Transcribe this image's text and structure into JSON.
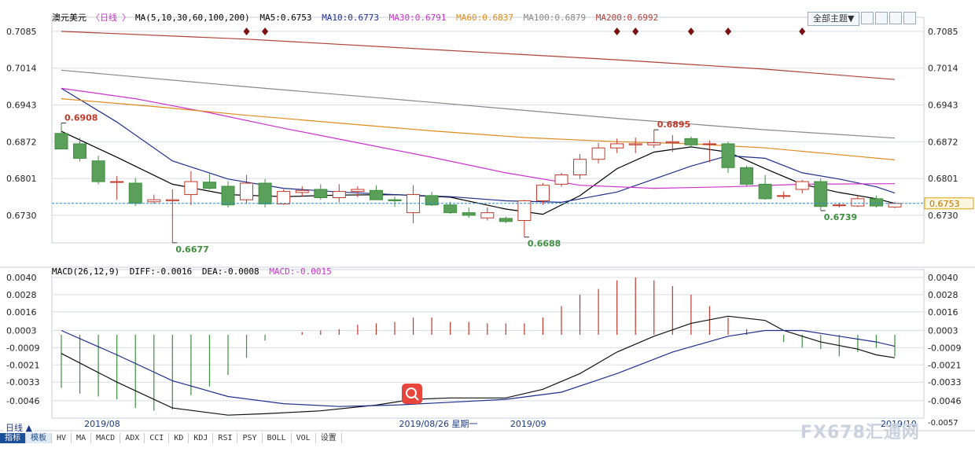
{
  "header": {
    "symbol": "澳元美元",
    "period_tag": "日线",
    "ma_params": "MA(5,10,30,60,100,200)",
    "theme_button": "全部主题▼"
  },
  "ma_legend": [
    {
      "label": "MA5:0.6753",
      "color": "#000000"
    },
    {
      "label": "MA10:0.6773",
      "color": "#1f2f8c"
    },
    {
      "label": "MA30:0.6791",
      "color": "#cc33cc"
    },
    {
      "label": "MA60:0.6837",
      "color": "#e08a1e"
    },
    {
      "label": "MA100:0.6879",
      "color": "#888888"
    },
    {
      "label": "MA200:0.6992",
      "color": "#b0403a"
    }
  ],
  "macd_legend": {
    "params": "MACD(26,12,9)",
    "diff": "DIFF:-0.0016",
    "dea": "DEA:-0.0008",
    "macd": "MACD:-0.0015",
    "macd_color": "#cc33cc"
  },
  "colors": {
    "up": "#c0392b",
    "down": "#3f8f3f",
    "down_fill": "#5aa05a",
    "grid": "#d8dde6",
    "price_line": "#1e8fd6"
  },
  "current_price_label": "0.6753",
  "bottom": {
    "period": "日线 ▲",
    "tabs": [
      "指标",
      "模板",
      "HV",
      "MA",
      "MACD",
      "ADX",
      "CCI",
      "KD",
      "KDJ",
      "RSI",
      "PSY",
      "BOLL",
      "VOL",
      "设置"
    ],
    "date_labels": [
      {
        "text": "2019/08",
        "date_index": 2
      },
      {
        "text": "2019/08/26 星期一",
        "date_index": 19
      },
      {
        "text": "2019/09",
        "date_index": 25
      },
      {
        "text": "2019/10",
        "date_index": 45
      }
    ],
    "macd_bottom_label": "-0.0057"
  },
  "watermark": "FX678汇通网",
  "chart_data": [
    {
      "type": "candlestick",
      "title": "澳元美元 日线",
      "ylim": [
        0.6695,
        0.71
      ],
      "y_ticks": [
        "0.7085",
        "0.7014",
        "0.6943",
        "0.6872",
        "0.6801",
        "0.6730"
      ],
      "grid": true,
      "annotations": [
        {
          "text": "0.6908",
          "index": 0,
          "value": 0.6908,
          "color": "#c0392b"
        },
        {
          "text": "0.6677",
          "index": 6,
          "value": 0.6677,
          "color": "#3f8f3f"
        },
        {
          "text": "0.6688",
          "index": 25,
          "value": 0.6688,
          "color": "#3f8f3f"
        },
        {
          "text": "0.6895",
          "index": 32,
          "value": 0.6895,
          "color": "#c0392b"
        },
        {
          "text": "0.6739",
          "index": 41,
          "value": 0.6739,
          "color": "#3f8f3f"
        }
      ],
      "markers": [
        10,
        11,
        30,
        31,
        34,
        36,
        40
      ],
      "candles": [
        {
          "o": 0.6888,
          "h": 0.6908,
          "l": 0.6858,
          "c": 0.6858
        },
        {
          "o": 0.6868,
          "h": 0.688,
          "l": 0.6834,
          "c": 0.684
        },
        {
          "o": 0.6835,
          "h": 0.6845,
          "l": 0.679,
          "c": 0.6795
        },
        {
          "o": 0.6795,
          "h": 0.6806,
          "l": 0.676,
          "c": 0.6795
        },
        {
          "o": 0.6792,
          "h": 0.6802,
          "l": 0.6748,
          "c": 0.6753
        },
        {
          "o": 0.6756,
          "h": 0.677,
          "l": 0.6752,
          "c": 0.676
        },
        {
          "o": 0.6758,
          "h": 0.678,
          "l": 0.6677,
          "c": 0.676
        },
        {
          "o": 0.677,
          "h": 0.6815,
          "l": 0.675,
          "c": 0.6795
        },
        {
          "o": 0.6794,
          "h": 0.681,
          "l": 0.678,
          "c": 0.6782
        },
        {
          "o": 0.6786,
          "h": 0.6796,
          "l": 0.6745,
          "c": 0.675
        },
        {
          "o": 0.676,
          "h": 0.6808,
          "l": 0.6752,
          "c": 0.6792
        },
        {
          "o": 0.6792,
          "h": 0.68,
          "l": 0.6745,
          "c": 0.6752
        },
        {
          "o": 0.6752,
          "h": 0.678,
          "l": 0.675,
          "c": 0.6776
        },
        {
          "o": 0.6774,
          "h": 0.6786,
          "l": 0.6766,
          "c": 0.6778
        },
        {
          "o": 0.678,
          "h": 0.679,
          "l": 0.676,
          "c": 0.6764
        },
        {
          "o": 0.6764,
          "h": 0.679,
          "l": 0.6755,
          "c": 0.6776
        },
        {
          "o": 0.6776,
          "h": 0.6786,
          "l": 0.6765,
          "c": 0.678
        },
        {
          "o": 0.6778,
          "h": 0.6788,
          "l": 0.676,
          "c": 0.676
        },
        {
          "o": 0.676,
          "h": 0.6766,
          "l": 0.6746,
          "c": 0.6758
        },
        {
          "o": 0.6735,
          "h": 0.6788,
          "l": 0.6715,
          "c": 0.677
        },
        {
          "o": 0.6768,
          "h": 0.6775,
          "l": 0.6748,
          "c": 0.675
        },
        {
          "o": 0.675,
          "h": 0.6756,
          "l": 0.6733,
          "c": 0.6735
        },
        {
          "o": 0.6735,
          "h": 0.6745,
          "l": 0.6725,
          "c": 0.673
        },
        {
          "o": 0.6725,
          "h": 0.6745,
          "l": 0.672,
          "c": 0.6735
        },
        {
          "o": 0.6724,
          "h": 0.6727,
          "l": 0.6715,
          "c": 0.6718
        },
        {
          "o": 0.672,
          "h": 0.676,
          "l": 0.6688,
          "c": 0.6758
        },
        {
          "o": 0.6758,
          "h": 0.6792,
          "l": 0.675,
          "c": 0.6788
        },
        {
          "o": 0.679,
          "h": 0.6812,
          "l": 0.6785,
          "c": 0.6808
        },
        {
          "o": 0.6808,
          "h": 0.6848,
          "l": 0.68,
          "c": 0.6838
        },
        {
          "o": 0.6838,
          "h": 0.687,
          "l": 0.683,
          "c": 0.686
        },
        {
          "o": 0.686,
          "h": 0.6878,
          "l": 0.685,
          "c": 0.6868
        },
        {
          "o": 0.6866,
          "h": 0.688,
          "l": 0.685,
          "c": 0.6868
        },
        {
          "o": 0.6866,
          "h": 0.6895,
          "l": 0.686,
          "c": 0.687
        },
        {
          "o": 0.687,
          "h": 0.6885,
          "l": 0.6852,
          "c": 0.6872
        },
        {
          "o": 0.6878,
          "h": 0.6882,
          "l": 0.6862,
          "c": 0.6866
        },
        {
          "o": 0.6868,
          "h": 0.6874,
          "l": 0.6832,
          "c": 0.6868
        },
        {
          "o": 0.6868,
          "h": 0.6872,
          "l": 0.6812,
          "c": 0.6822
        },
        {
          "o": 0.6822,
          "h": 0.6826,
          "l": 0.6786,
          "c": 0.679
        },
        {
          "o": 0.679,
          "h": 0.6808,
          "l": 0.676,
          "c": 0.6762
        },
        {
          "o": 0.6768,
          "h": 0.6776,
          "l": 0.6762,
          "c": 0.6768
        },
        {
          "o": 0.678,
          "h": 0.6798,
          "l": 0.6772,
          "c": 0.6795
        },
        {
          "o": 0.6795,
          "h": 0.6801,
          "l": 0.6739,
          "c": 0.6747
        },
        {
          "o": 0.675,
          "h": 0.6754,
          "l": 0.6745,
          "c": 0.675
        },
        {
          "o": 0.6748,
          "h": 0.6768,
          "l": 0.6746,
          "c": 0.6762
        },
        {
          "o": 0.6762,
          "h": 0.6768,
          "l": 0.6745,
          "c": 0.6748
        },
        {
          "o": 0.6746,
          "h": 0.6756,
          "l": 0.6744,
          "c": 0.6753
        }
      ],
      "moving_averages": [
        {
          "name": "MA5",
          "color": "#000000",
          "points": [
            [
              0,
              0.6892
            ],
            [
              3,
              0.6842
            ],
            [
              6,
              0.679
            ],
            [
              9,
              0.677
            ],
            [
              12,
              0.6766
            ],
            [
              15,
              0.6769
            ],
            [
              18,
              0.677
            ],
            [
              21,
              0.6765
            ],
            [
              24,
              0.6742
            ],
            [
              26,
              0.6732
            ],
            [
              28,
              0.6768
            ],
            [
              30,
              0.682
            ],
            [
              32,
              0.6852
            ],
            [
              34,
              0.6862
            ],
            [
              36,
              0.6852
            ],
            [
              38,
              0.682
            ],
            [
              40,
              0.679
            ],
            [
              42,
              0.6774
            ],
            [
              44,
              0.6762
            ],
            [
              45,
              0.6753
            ]
          ]
        },
        {
          "name": "MA10",
          "color": "#1f2f8c",
          "points": [
            [
              0,
              0.6975
            ],
            [
              3,
              0.691
            ],
            [
              6,
              0.6835
            ],
            [
              9,
              0.68
            ],
            [
              12,
              0.6782
            ],
            [
              15,
              0.6775
            ],
            [
              18,
              0.677
            ],
            [
              21,
              0.6766
            ],
            [
              24,
              0.6758
            ],
            [
              27,
              0.6755
            ],
            [
              30,
              0.6775
            ],
            [
              32,
              0.68
            ],
            [
              34,
              0.6825
            ],
            [
              36,
              0.6845
            ],
            [
              38,
              0.684
            ],
            [
              40,
              0.6812
            ],
            [
              42,
              0.68
            ],
            [
              44,
              0.6785
            ],
            [
              45,
              0.6773
            ]
          ]
        },
        {
          "name": "MA30",
          "color": "#cc33cc",
          "points": [
            [
              0,
              0.6975
            ],
            [
              4,
              0.6955
            ],
            [
              8,
              0.6928
            ],
            [
              12,
              0.6898
            ],
            [
              16,
              0.687
            ],
            [
              20,
              0.6842
            ],
            [
              24,
              0.6812
            ],
            [
              28,
              0.6788
            ],
            [
              32,
              0.6782
            ],
            [
              36,
              0.6785
            ],
            [
              40,
              0.679
            ],
            [
              45,
              0.6791
            ]
          ]
        },
        {
          "name": "MA60",
          "color": "#e08a1e",
          "points": [
            [
              0,
              0.6955
            ],
            [
              5,
              0.694
            ],
            [
              10,
              0.6923
            ],
            [
              15,
              0.6908
            ],
            [
              20,
              0.6893
            ],
            [
              25,
              0.688
            ],
            [
              30,
              0.6872
            ],
            [
              34,
              0.6868
            ],
            [
              38,
              0.686
            ],
            [
              42,
              0.6847
            ],
            [
              45,
              0.6837
            ]
          ]
        },
        {
          "name": "MA100",
          "color": "#888888",
          "points": [
            [
              0,
              0.701
            ],
            [
              10,
              0.6978
            ],
            [
              20,
              0.6948
            ],
            [
              30,
              0.6917
            ],
            [
              38,
              0.6895
            ],
            [
              45,
              0.6879
            ]
          ]
        },
        {
          "name": "MA200",
          "color": "#b0403a",
          "points": [
            [
              0,
              0.7085
            ],
            [
              10,
              0.707
            ],
            [
              20,
              0.705
            ],
            [
              30,
              0.703
            ],
            [
              38,
              0.7012
            ],
            [
              45,
              0.6992
            ]
          ]
        }
      ]
    },
    {
      "type": "bar",
      "title": "MACD(26,12,9)",
      "ylim": [
        -0.0057,
        0.004
      ],
      "y_ticks": [
        "0.0040",
        "0.0028",
        "0.0016",
        "0.0003",
        "-0.0009",
        "-0.0021",
        "-0.0033",
        "-0.0046"
      ],
      "macd_hist": [
        -0.0037,
        -0.0041,
        -0.0043,
        -0.0045,
        -0.0051,
        -0.0053,
        -0.0052,
        -0.0042,
        -0.0036,
        -0.0028,
        -0.0016,
        -0.0004,
        0.0,
        0.0002,
        0.0003,
        0.0004,
        0.0007,
        0.0008,
        0.0009,
        0.0012,
        0.0012,
        0.0009,
        0.0009,
        0.0008,
        0.0008,
        0.0008,
        0.0012,
        0.002,
        0.0028,
        0.0032,
        0.0038,
        0.004,
        0.0038,
        0.0034,
        0.0028,
        0.002,
        0.0012,
        0.0004,
        0.0,
        -0.0005,
        -0.0009,
        -0.001,
        -0.0015,
        -0.0012,
        -0.0009,
        -0.0015
      ],
      "diff": [
        {
          "x": 0,
          "y": -0.0013
        },
        {
          "x": 3,
          "y": -0.0033
        },
        {
          "x": 6,
          "y": -0.0051
        },
        {
          "x": 9,
          "y": -0.0056
        },
        {
          "x": 11,
          "y": -0.0055
        },
        {
          "x": 14,
          "y": -0.0053
        },
        {
          "x": 17,
          "y": -0.0049
        },
        {
          "x": 19,
          "y": -0.0045
        },
        {
          "x": 21,
          "y": -0.0044
        },
        {
          "x": 24,
          "y": -0.0044
        },
        {
          "x": 26,
          "y": -0.0038
        },
        {
          "x": 28,
          "y": -0.0027
        },
        {
          "x": 30,
          "y": -0.0012
        },
        {
          "x": 32,
          "y": -0.0001
        },
        {
          "x": 34,
          "y": 0.0008
        },
        {
          "x": 36,
          "y": 0.0013
        },
        {
          "x": 38,
          "y": 0.001
        },
        {
          "x": 39,
          "y": 0.0003
        },
        {
          "x": 41,
          "y": -0.0005
        },
        {
          "x": 43,
          "y": -0.001
        },
        {
          "x": 44,
          "y": -0.0014
        },
        {
          "x": 45,
          "y": -0.0016
        }
      ],
      "dea": [
        {
          "x": 0,
          "y": 0.0003
        },
        {
          "x": 3,
          "y": -0.0014
        },
        {
          "x": 6,
          "y": -0.0032
        },
        {
          "x": 9,
          "y": -0.0043
        },
        {
          "x": 12,
          "y": -0.0048
        },
        {
          "x": 15,
          "y": -0.005
        },
        {
          "x": 18,
          "y": -0.0049
        },
        {
          "x": 21,
          "y": -0.0047
        },
        {
          "x": 24,
          "y": -0.0045
        },
        {
          "x": 27,
          "y": -0.004
        },
        {
          "x": 30,
          "y": -0.0027
        },
        {
          "x": 33,
          "y": -0.0012
        },
        {
          "x": 36,
          "y": -0.0001
        },
        {
          "x": 38,
          "y": 0.0003
        },
        {
          "x": 40,
          "y": 0.0003
        },
        {
          "x": 42,
          "y": -0.0001
        },
        {
          "x": 44,
          "y": -0.0005
        },
        {
          "x": 45,
          "y": -0.0008
        }
      ]
    }
  ]
}
